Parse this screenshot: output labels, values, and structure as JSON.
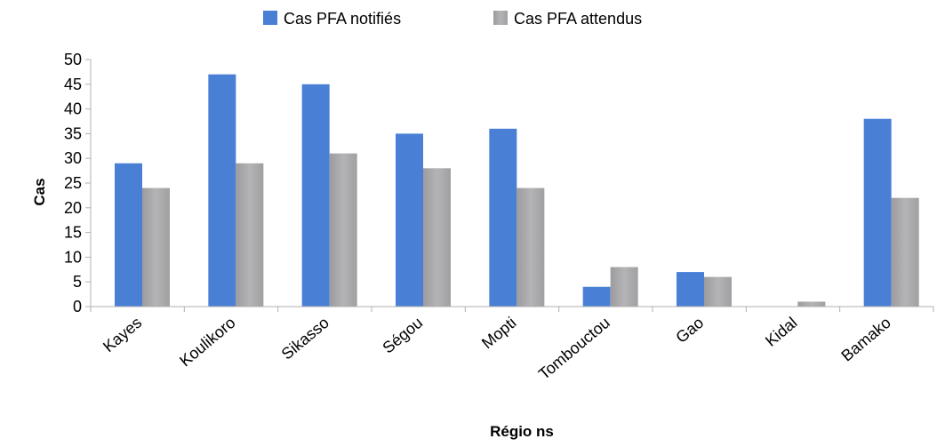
{
  "chart_data": {
    "type": "bar",
    "title": "",
    "xlabel": "Régio ns",
    "ylabel": "Cas",
    "categories": [
      "Kayes",
      "Koulikoro",
      "Sikasso",
      "Ségou",
      "Mopti",
      "Tombouctou",
      "Gao",
      "Kidal",
      "Bamako"
    ],
    "series": [
      {
        "name": "Cas PFA notifiés",
        "color": "#4a7fd6",
        "values": [
          29,
          47,
          45,
          35,
          36,
          4,
          7,
          0,
          38
        ]
      },
      {
        "name": "Cas PFA attendus",
        "color": "#a8a8aa",
        "values": [
          24,
          29,
          31,
          28,
          24,
          8,
          6,
          1,
          22
        ]
      }
    ],
    "ylim": [
      0,
      50
    ],
    "yticks": [
      0,
      5,
      10,
      15,
      20,
      25,
      30,
      35,
      40,
      45,
      50
    ],
    "grid": false,
    "legend_position": "top-center"
  }
}
